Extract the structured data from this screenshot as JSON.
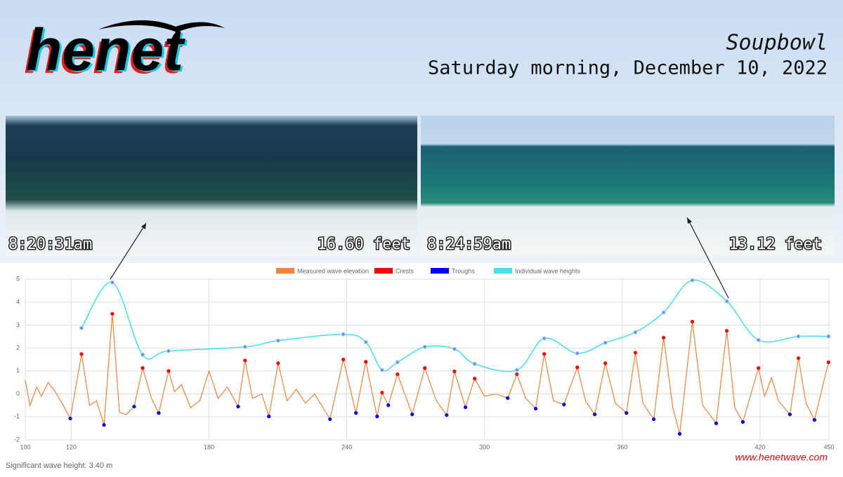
{
  "logo": "henet",
  "location": "Soupbowl",
  "date": "Saturday morning, December 10, 2022",
  "photos": [
    {
      "time": "8:20:31am",
      "height": "16.60 feet"
    },
    {
      "time": "8:24:59am",
      "height": "13.12 feet"
    }
  ],
  "footer": {
    "significant": "Significant wave height: 3.40 m",
    "url": "www.henetwave.com"
  },
  "chart_data": {
    "type": "line",
    "xlim": [
      100,
      450
    ],
    "xticks": [
      100,
      120,
      180,
      240,
      300,
      360,
      420,
      450
    ],
    "ylim": [
      -2,
      5
    ],
    "yticks": [
      -2,
      -1,
      0,
      1,
      2,
      3,
      4,
      5
    ],
    "grid": true,
    "legend": "top",
    "series": [
      {
        "name": "Measured wave elevation",
        "color": "#f5823a",
        "mark": "line",
        "x": [
          100,
          102,
          105,
          107,
          110,
          113,
          116,
          119.6,
          124.5,
          128,
          131,
          134.3,
          137.9,
          141,
          144,
          147.4,
          151.1,
          155,
          158.1,
          162.4,
          165,
          168,
          172,
          176,
          180,
          184,
          188,
          192.7,
          195.7,
          199,
          203,
          206.1,
          210.1,
          214,
          218,
          222,
          226,
          232.7,
          238.5,
          244.0,
          248.3,
          253.2,
          255.4,
          258.1,
          262.1,
          268.5,
          274.0,
          279,
          283.5,
          286.9,
          291.7,
          295.7,
          300,
          305,
          310.1,
          314.1,
          318,
          322.3,
          326.0,
          330,
          334.6,
          340.4,
          344,
          348.0,
          352.6,
          357,
          361.8,
          365.7,
          369,
          373.7,
          378.0,
          382,
          385.0,
          390.5,
          395,
          400.9,
          405.5,
          409,
          412.5,
          419.3,
          422,
          425,
          428,
          433.0,
          436.7,
          440,
          443.7,
          449.8
        ],
        "values": [
          0.6,
          -0.5,
          0.3,
          -0.1,
          0.5,
          0.1,
          -0.4,
          -1.07,
          1.74,
          -0.5,
          -0.3,
          -1.35,
          3.49,
          -0.8,
          -0.9,
          -0.55,
          1.13,
          -0.2,
          -0.83,
          1.0,
          0.1,
          0.4,
          -0.6,
          -0.3,
          1.0,
          -0.2,
          0.3,
          -0.55,
          1.46,
          -0.2,
          0.0,
          -0.98,
          1.34,
          -0.3,
          0.2,
          -0.4,
          0.0,
          -1.1,
          1.5,
          -0.83,
          1.4,
          -0.98,
          0.06,
          -0.49,
          0.86,
          -0.89,
          1.13,
          -0.3,
          -0.92,
          0.98,
          -0.58,
          0.67,
          -0.1,
          0.0,
          -0.18,
          0.86,
          -0.2,
          -0.64,
          1.74,
          -0.3,
          -0.46,
          1.16,
          -0.3,
          -0.89,
          1.34,
          -0.4,
          -0.83,
          1.8,
          -0.4,
          -1.1,
          2.45,
          -0.6,
          -1.74,
          3.15,
          -0.5,
          -1.28,
          2.75,
          -0.6,
          -1.22,
          1.13,
          -0.1,
          0.7,
          -0.3,
          -0.89,
          1.56,
          -0.4,
          -1.13,
          1.38
        ]
      },
      {
        "name": "Crests",
        "color": "#ff0000",
        "mark": "points",
        "x": [
          124.5,
          137.9,
          151.1,
          162.4,
          195.7,
          210.1,
          238.5,
          248.3,
          255.4,
          262.1,
          274.0,
          286.9,
          295.7,
          314.1,
          326.0,
          340.4,
          352.6,
          365.7,
          378.0,
          390.5,
          405.5,
          419.3,
          436.7,
          449.8
        ],
        "values": [
          1.74,
          3.49,
          1.13,
          1.0,
          1.46,
          1.34,
          1.5,
          1.4,
          0.06,
          0.86,
          1.13,
          0.98,
          0.67,
          0.86,
          1.74,
          1.16,
          1.34,
          1.8,
          2.45,
          3.15,
          2.75,
          1.13,
          1.56,
          1.38
        ]
      },
      {
        "name": "Troughs",
        "color": "#0000ff",
        "mark": "points",
        "x": [
          119.6,
          134.3,
          147.4,
          158.1,
          192.7,
          206.1,
          232.7,
          244.0,
          253.2,
          258.1,
          268.5,
          283.5,
          291.7,
          310.1,
          322.3,
          334.6,
          348.0,
          361.8,
          373.7,
          385.0,
          400.9,
          412.5,
          433.0,
          443.7
        ],
        "values": [
          -1.07,
          -1.35,
          -0.55,
          -0.83,
          -0.55,
          -0.98,
          -1.1,
          -0.83,
          -0.98,
          -0.49,
          -0.89,
          -0.92,
          -0.58,
          -0.18,
          -0.64,
          -0.46,
          -0.89,
          -0.83,
          -1.1,
          -1.74,
          -1.28,
          -1.22,
          -0.89,
          -1.13
        ]
      },
      {
        "name": "Individual wave heights",
        "color": "#40e0f0",
        "mark": "smooth",
        "x": [
          124.5,
          137.9,
          151.1,
          162.4,
          195.7,
          210.1,
          238.5,
          248.3,
          255.4,
          262.1,
          274.0,
          286.9,
          295.7,
          314.1,
          326.0,
          340.4,
          352.6,
          365.7,
          378.0,
          390.5,
          405.5,
          419.3,
          436.7,
          449.8
        ],
        "values": [
          2.87,
          4.86,
          1.71,
          1.87,
          2.05,
          2.32,
          2.6,
          2.26,
          1.04,
          1.38,
          2.05,
          1.96,
          1.31,
          1.04,
          2.42,
          1.77,
          2.23,
          2.69,
          3.55,
          4.95,
          4.04,
          2.35,
          2.51,
          2.51
        ]
      }
    ]
  }
}
